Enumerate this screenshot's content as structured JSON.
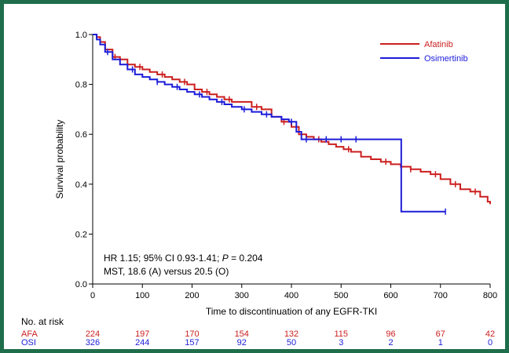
{
  "chart_data": {
    "type": "line",
    "xlabel": "Time to discontinuation of any EGFR-TKI",
    "ylabel": "Survival probability",
    "xlim": [
      0,
      800
    ],
    "ylim": [
      0.0,
      1.0
    ],
    "x_ticks": [
      "0",
      "100",
      "200",
      "300",
      "400",
      "500",
      "600",
      "700",
      "800"
    ],
    "y_ticks": [
      "0.0",
      "0.2",
      "0.4",
      "0.6",
      "0.8",
      "1.0"
    ],
    "grid": false,
    "legend_position": "top-right",
    "annotations": {
      "hr_line_prefix": "HR 1.15; 95% CI 0.93-1.41; ",
      "hr_line_p": "P",
      "hr_line_suffix": " = 0.204",
      "mst_line": "MST, 18.6 (A) versus 20.5 (O)"
    },
    "series": [
      {
        "name": "Afatinib",
        "color": "#cc1f1f",
        "x": [
          0,
          8,
          15,
          25,
          40,
          55,
          70,
          85,
          100,
          115,
          130,
          145,
          160,
          175,
          190,
          205,
          220,
          235,
          250,
          265,
          280,
          300,
          320,
          340,
          360,
          380,
          400,
          415,
          430,
          445,
          460,
          475,
          490,
          505,
          520,
          540,
          560,
          580,
          600,
          620,
          640,
          660,
          680,
          700,
          720,
          740,
          760,
          780,
          795,
          800
        ],
        "y": [
          1.0,
          0.99,
          0.97,
          0.94,
          0.91,
          0.9,
          0.88,
          0.87,
          0.86,
          0.85,
          0.84,
          0.83,
          0.82,
          0.81,
          0.8,
          0.78,
          0.77,
          0.76,
          0.75,
          0.74,
          0.73,
          0.73,
          0.71,
          0.7,
          0.67,
          0.65,
          0.63,
          0.6,
          0.59,
          0.58,
          0.57,
          0.56,
          0.55,
          0.54,
          0.53,
          0.51,
          0.5,
          0.49,
          0.48,
          0.47,
          0.46,
          0.45,
          0.44,
          0.42,
          0.4,
          0.38,
          0.37,
          0.35,
          0.33,
          0.32
        ],
        "censored_x": [
          45,
          95,
          140,
          185,
          230,
          275,
          330,
          385,
          455,
          515,
          590,
          640,
          690,
          730,
          770
        ]
      },
      {
        "name": "Osimertinib",
        "color": "#1c1cd9",
        "x": [
          0,
          8,
          15,
          25,
          40,
          55,
          70,
          85,
          100,
          115,
          130,
          145,
          160,
          175,
          190,
          205,
          220,
          235,
          250,
          265,
          280,
          300,
          320,
          340,
          360,
          380,
          395,
          410,
          420,
          440,
          520,
          540,
          600,
          620,
          621,
          710
        ],
        "y": [
          1.0,
          0.98,
          0.96,
          0.93,
          0.9,
          0.88,
          0.86,
          0.84,
          0.83,
          0.82,
          0.81,
          0.8,
          0.79,
          0.78,
          0.77,
          0.76,
          0.75,
          0.74,
          0.73,
          0.72,
          0.71,
          0.7,
          0.69,
          0.68,
          0.67,
          0.66,
          0.65,
          0.61,
          0.58,
          0.58,
          0.58,
          0.58,
          0.58,
          0.58,
          0.29,
          0.29
        ],
        "censored_x": [
          30,
          80,
          130,
          170,
          215,
          260,
          305,
          350,
          400,
          430,
          470,
          500,
          530,
          710
        ]
      }
    ],
    "risk_table": {
      "title": "No. at risk",
      "rows": [
        {
          "label": "AFA",
          "color": "#cc1f1f",
          "values": [
            "224",
            "197",
            "170",
            "154",
            "132",
            "115",
            "96",
            "67",
            "42"
          ]
        },
        {
          "label": "OSI",
          "color": "#1c1cd9",
          "values": [
            "326",
            "244",
            "157",
            "92",
            "50",
            "3",
            "2",
            "1",
            "0"
          ]
        }
      ]
    }
  }
}
